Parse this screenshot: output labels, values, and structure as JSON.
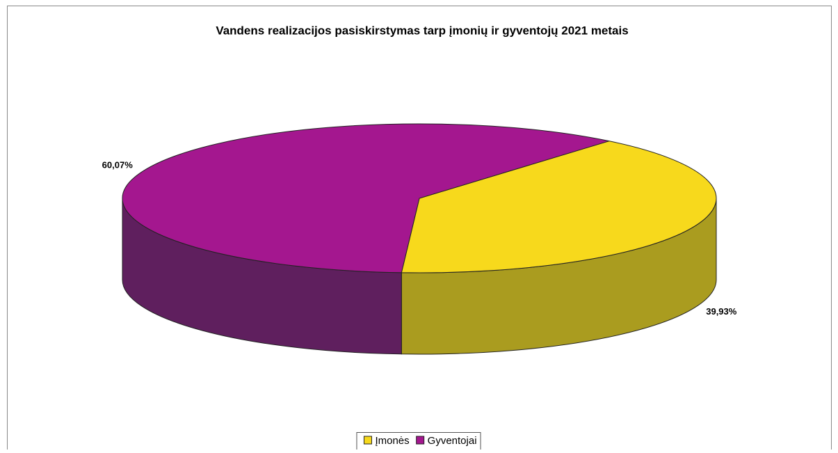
{
  "chart_data": {
    "type": "pie3d",
    "title": "Vandens realizacijos pasiskirstymas tarp įmonių ir gyventojų 2021 metais",
    "categories": [
      "Įmonės",
      "Gyventojai"
    ],
    "values": [
      39.93,
      60.07
    ],
    "value_labels": [
      "39,93%",
      "60,07%"
    ],
    "colors": [
      "#f7d91c",
      "#a4178f"
    ],
    "side_colors": [
      "#aa9c1f",
      "#5f1f5e"
    ],
    "legend": "bottom"
  }
}
